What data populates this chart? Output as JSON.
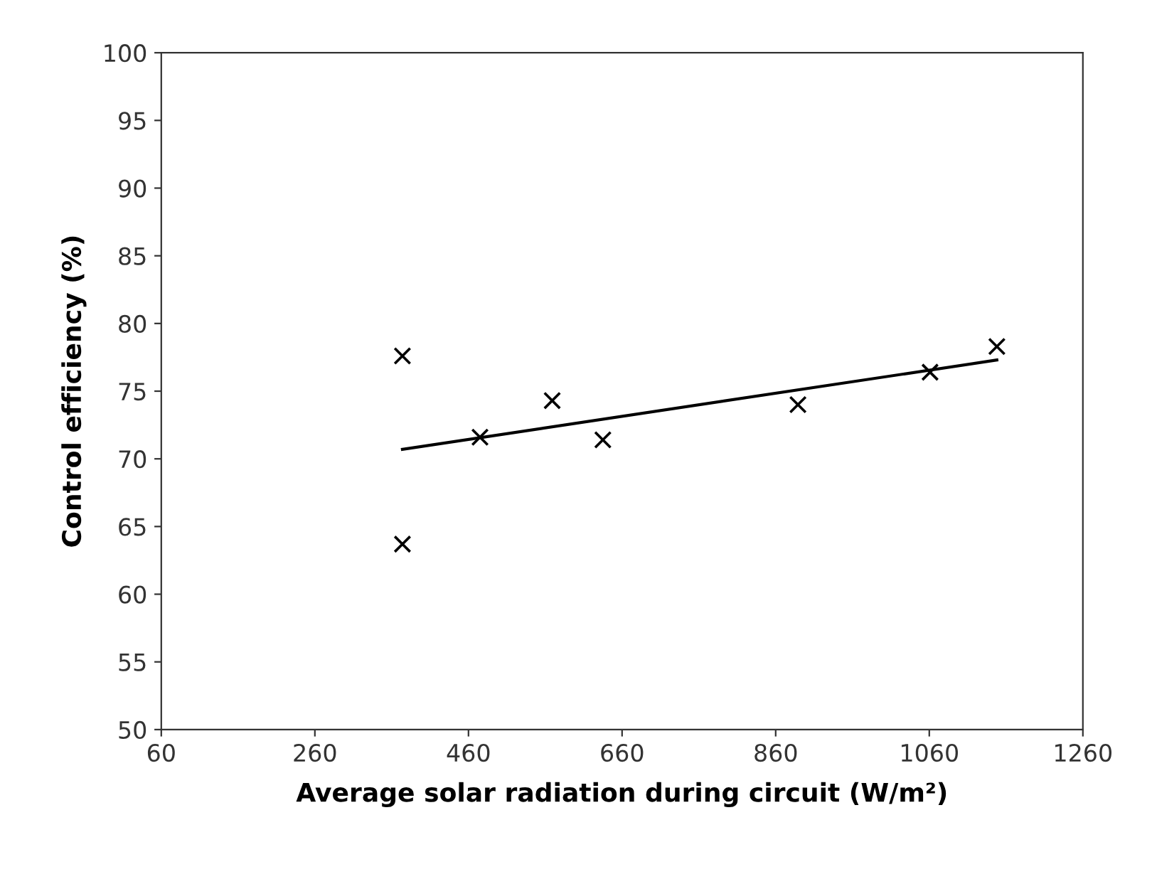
{
  "chart_data": {
    "type": "scatter",
    "xlabel": "Average solar radiation during circuit (W/m²)",
    "ylabel": "Control efficiency (%)",
    "xlim": [
      60,
      1260
    ],
    "xticks": [
      60,
      260,
      460,
      660,
      860,
      1060,
      1260
    ],
    "ylim": [
      50,
      100
    ],
    "yticks": [
      50,
      55,
      60,
      65,
      70,
      75,
      80,
      85,
      90,
      95,
      100
    ],
    "grid": false,
    "series": [
      {
        "marker": "cross",
        "color": "#000000",
        "x": [
          374,
          374,
          475,
          569,
          635,
          889,
          1061,
          1148
        ],
        "values": [
          77.6,
          63.7,
          71.6,
          74.3,
          71.4,
          74.0,
          76.4,
          78.3
        ]
      },
      {
        "type": "line",
        "marker": "none",
        "line_style": "solid",
        "color": "#000000",
        "x": [
          374,
          1148
        ],
        "values": [
          70.7,
          77.3
        ]
      }
    ]
  }
}
